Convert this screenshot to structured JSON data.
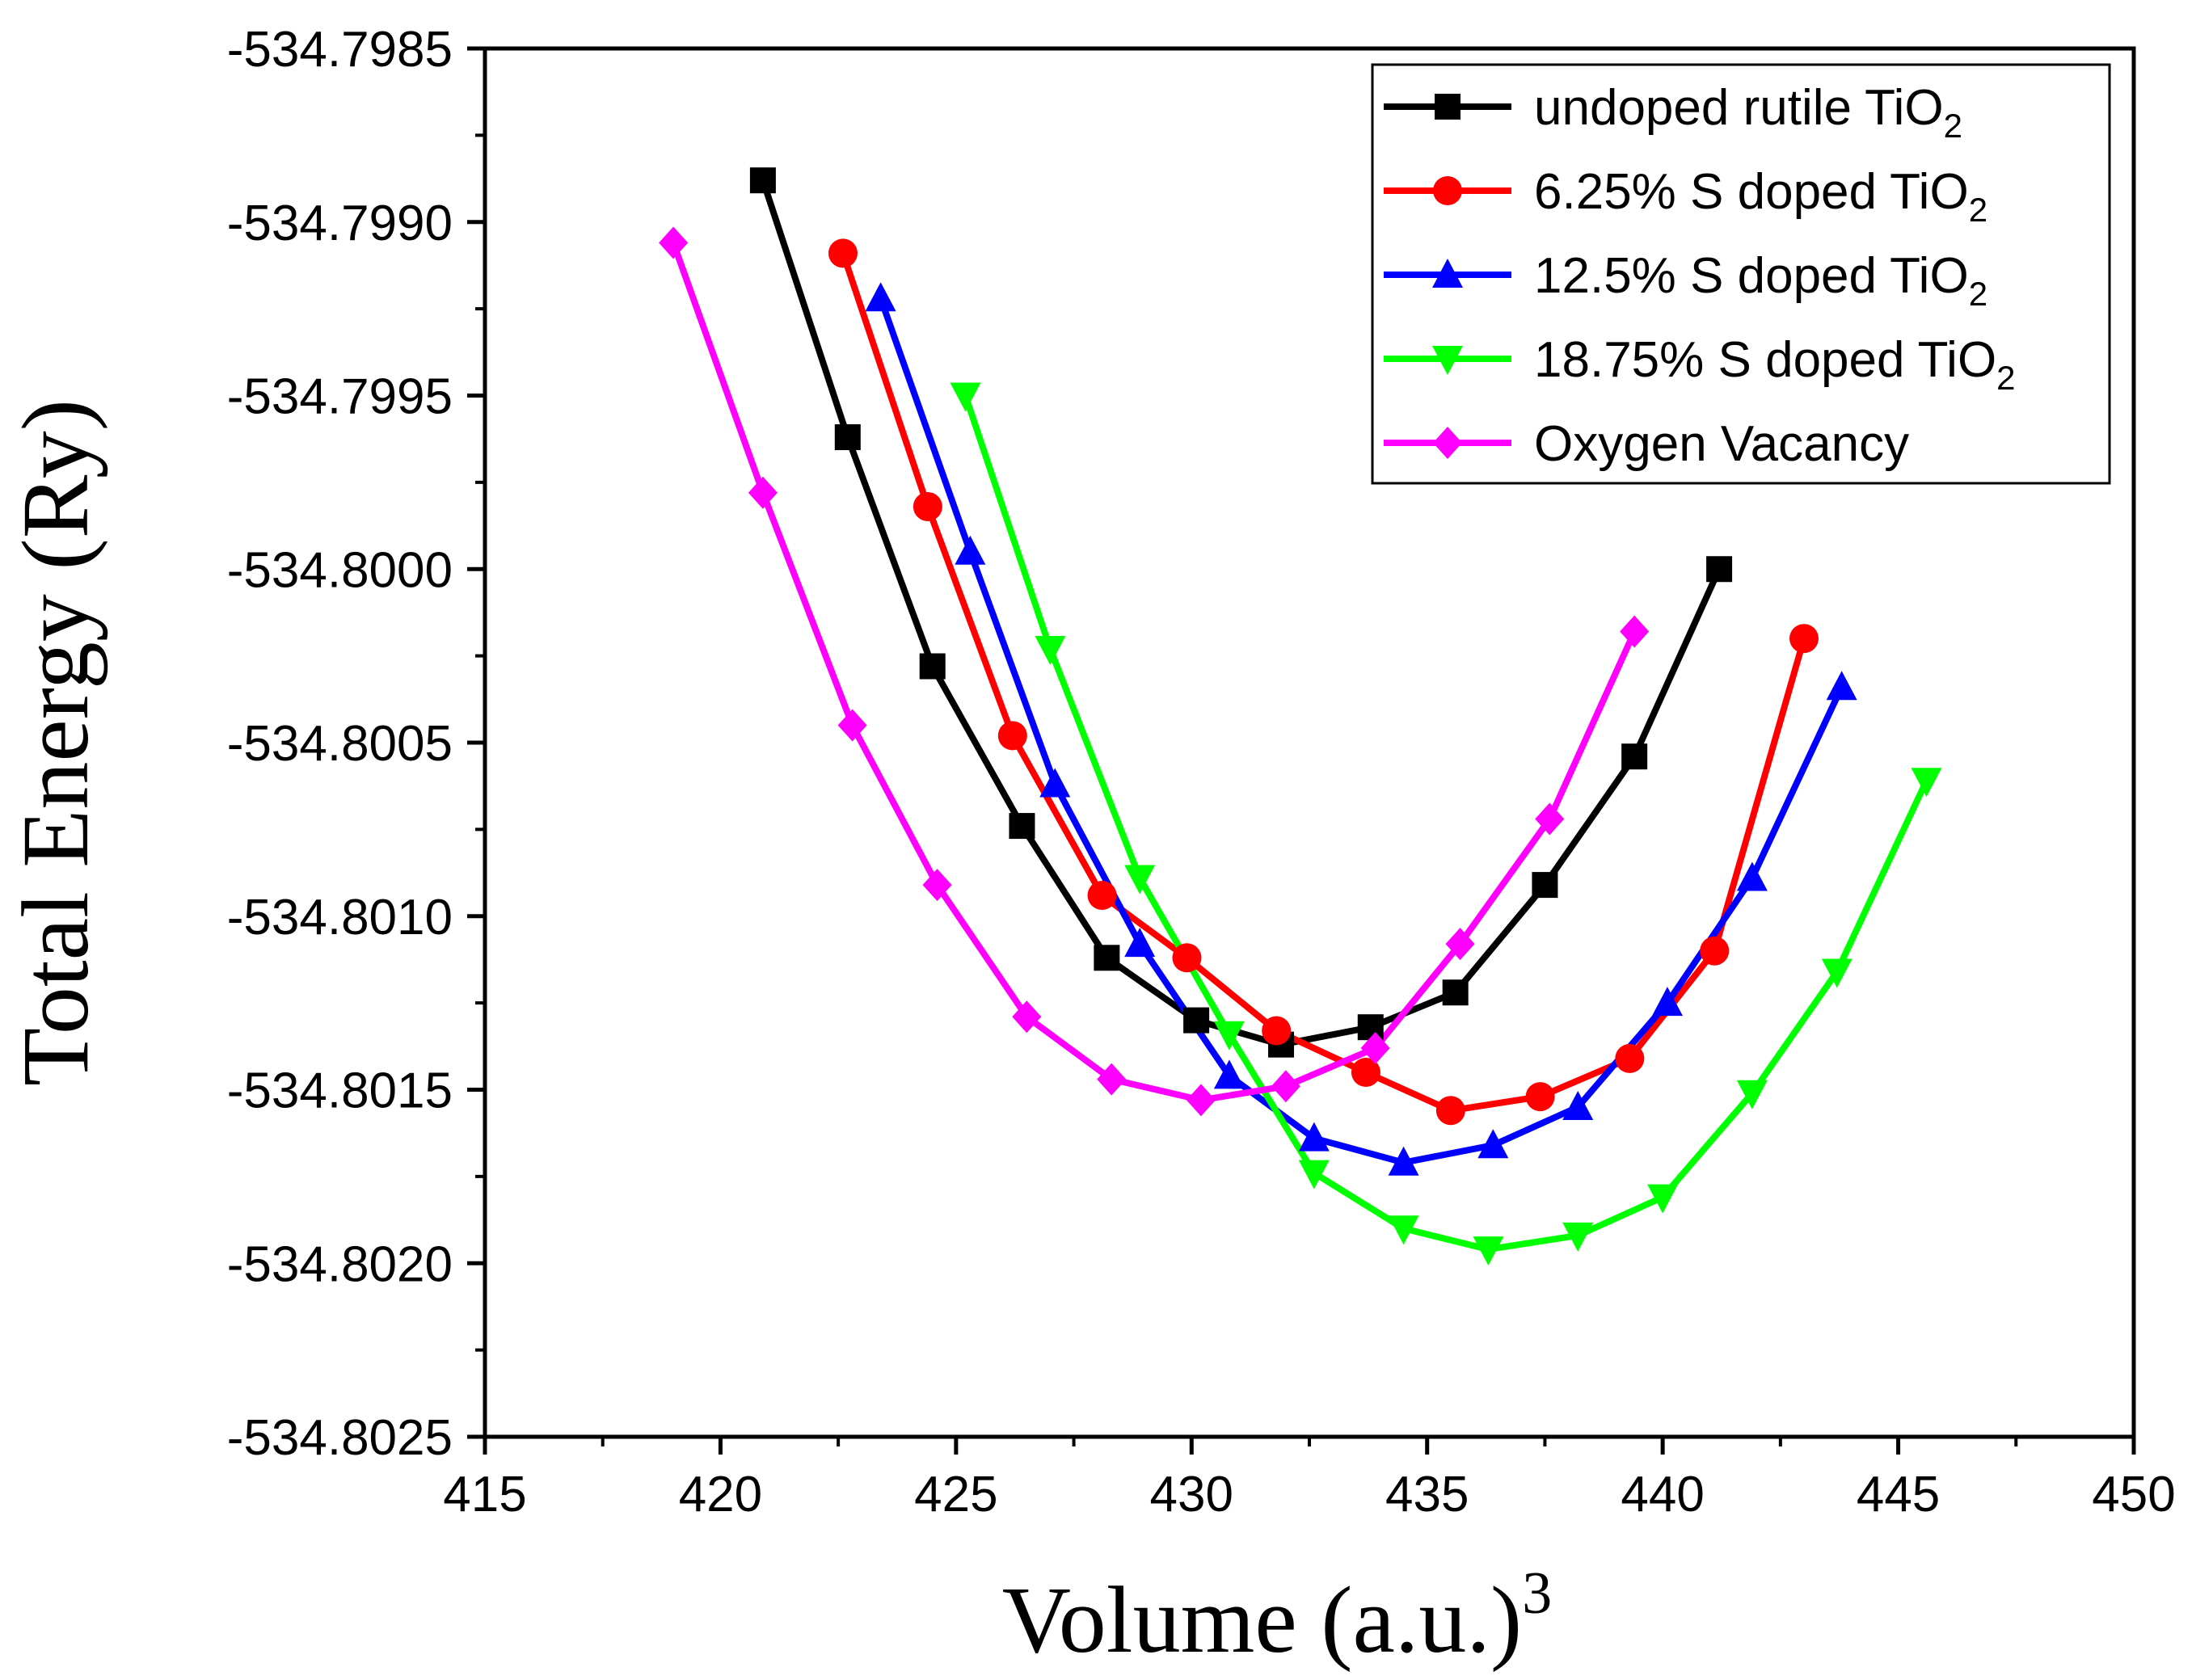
{
  "chart_data": {
    "type": "line",
    "title": "",
    "xlabel": "Volume (a.u.)",
    "xlabel_superscript": "3",
    "ylabel": "Total Energy (Ry)",
    "xlim": [
      415,
      450
    ],
    "ylim": [
      -534.8025,
      -534.7985
    ],
    "x_ticks": [
      "415",
      "420",
      "425",
      "430",
      "435",
      "440",
      "445",
      "450"
    ],
    "y_ticks": [
      "-534.7985",
      "-534.7990",
      "-534.7995",
      "-534.8000",
      "-534.8005",
      "-534.8010",
      "-534.8015",
      "-534.8020",
      "-534.8025"
    ],
    "legend_position": "top-right",
    "series": [
      {
        "name": "undoped rutile TiO",
        "subscript": "2",
        "color": "#000000",
        "marker": "square",
        "x": [
          420.9,
          422.7,
          424.5,
          426.4,
          428.2,
          430.1,
          431.9,
          433.8,
          435.6,
          437.5,
          439.4,
          441.2
        ],
        "y": [
          -534.79888,
          -534.79962,
          -534.80028,
          -534.80074,
          -534.80112,
          -534.8013,
          -534.80137,
          -534.80132,
          -534.80122,
          -534.80091,
          -534.80054,
          -534.8
        ]
      },
      {
        "name": "6.25% S doped TiO",
        "subscript": "2",
        "color": "#ff0000",
        "marker": "circle",
        "x": [
          422.6,
          424.4,
          426.2,
          428.1,
          429.9,
          431.8,
          433.7,
          435.5,
          437.4,
          439.3,
          441.1,
          443.0
        ],
        "y": [
          -534.79909,
          -534.79982,
          -534.80048,
          -534.80094,
          -534.80112,
          -534.80133,
          -534.80145,
          -534.80156,
          -534.80152,
          -534.80141,
          -534.8011,
          -534.8002
        ]
      },
      {
        "name": "12.5% S doped TiO",
        "subscript": "2",
        "color": "#0000ff",
        "marker": "triangle-up",
        "x": [
          423.4,
          425.3,
          427.1,
          428.9,
          430.8,
          432.6,
          434.5,
          436.4,
          438.2,
          440.1,
          441.9,
          443.8
        ],
        "y": [
          -534.79922,
          -534.79995,
          -534.80062,
          -534.80108,
          -534.80146,
          -534.80164,
          -534.80171,
          -534.80166,
          -534.80155,
          -534.80125,
          -534.80089,
          -534.80034
        ]
      },
      {
        "name": "18.75% S doped TiO",
        "subscript": "2",
        "color": "#00ff00",
        "marker": "triangle-down",
        "x": [
          425.2,
          427.0,
          428.9,
          430.8,
          432.6,
          434.5,
          436.3,
          438.2,
          440.0,
          441.9,
          443.7,
          445.6
        ],
        "y": [
          -534.7995,
          -534.80023,
          -534.80089,
          -534.80134,
          -534.80174,
          -534.8019,
          -534.80196,
          -534.80192,
          -534.80181,
          -534.80151,
          -534.80116,
          -534.80061
        ]
      },
      {
        "name": "Oxygen Vacancy",
        "subscript": "",
        "color": "#ff00ff",
        "marker": "diamond",
        "x": [
          419.0,
          420.9,
          422.8,
          424.6,
          426.5,
          428.3,
          430.2,
          432.0,
          433.9,
          435.7,
          437.6,
          439.4
        ],
        "y": [
          -534.79906,
          -534.79978,
          -534.80045,
          -534.80091,
          -534.80129,
          -534.80147,
          -534.80153,
          -534.80149,
          -534.80138,
          -534.80108,
          -534.80072,
          -534.80018
        ]
      }
    ]
  }
}
